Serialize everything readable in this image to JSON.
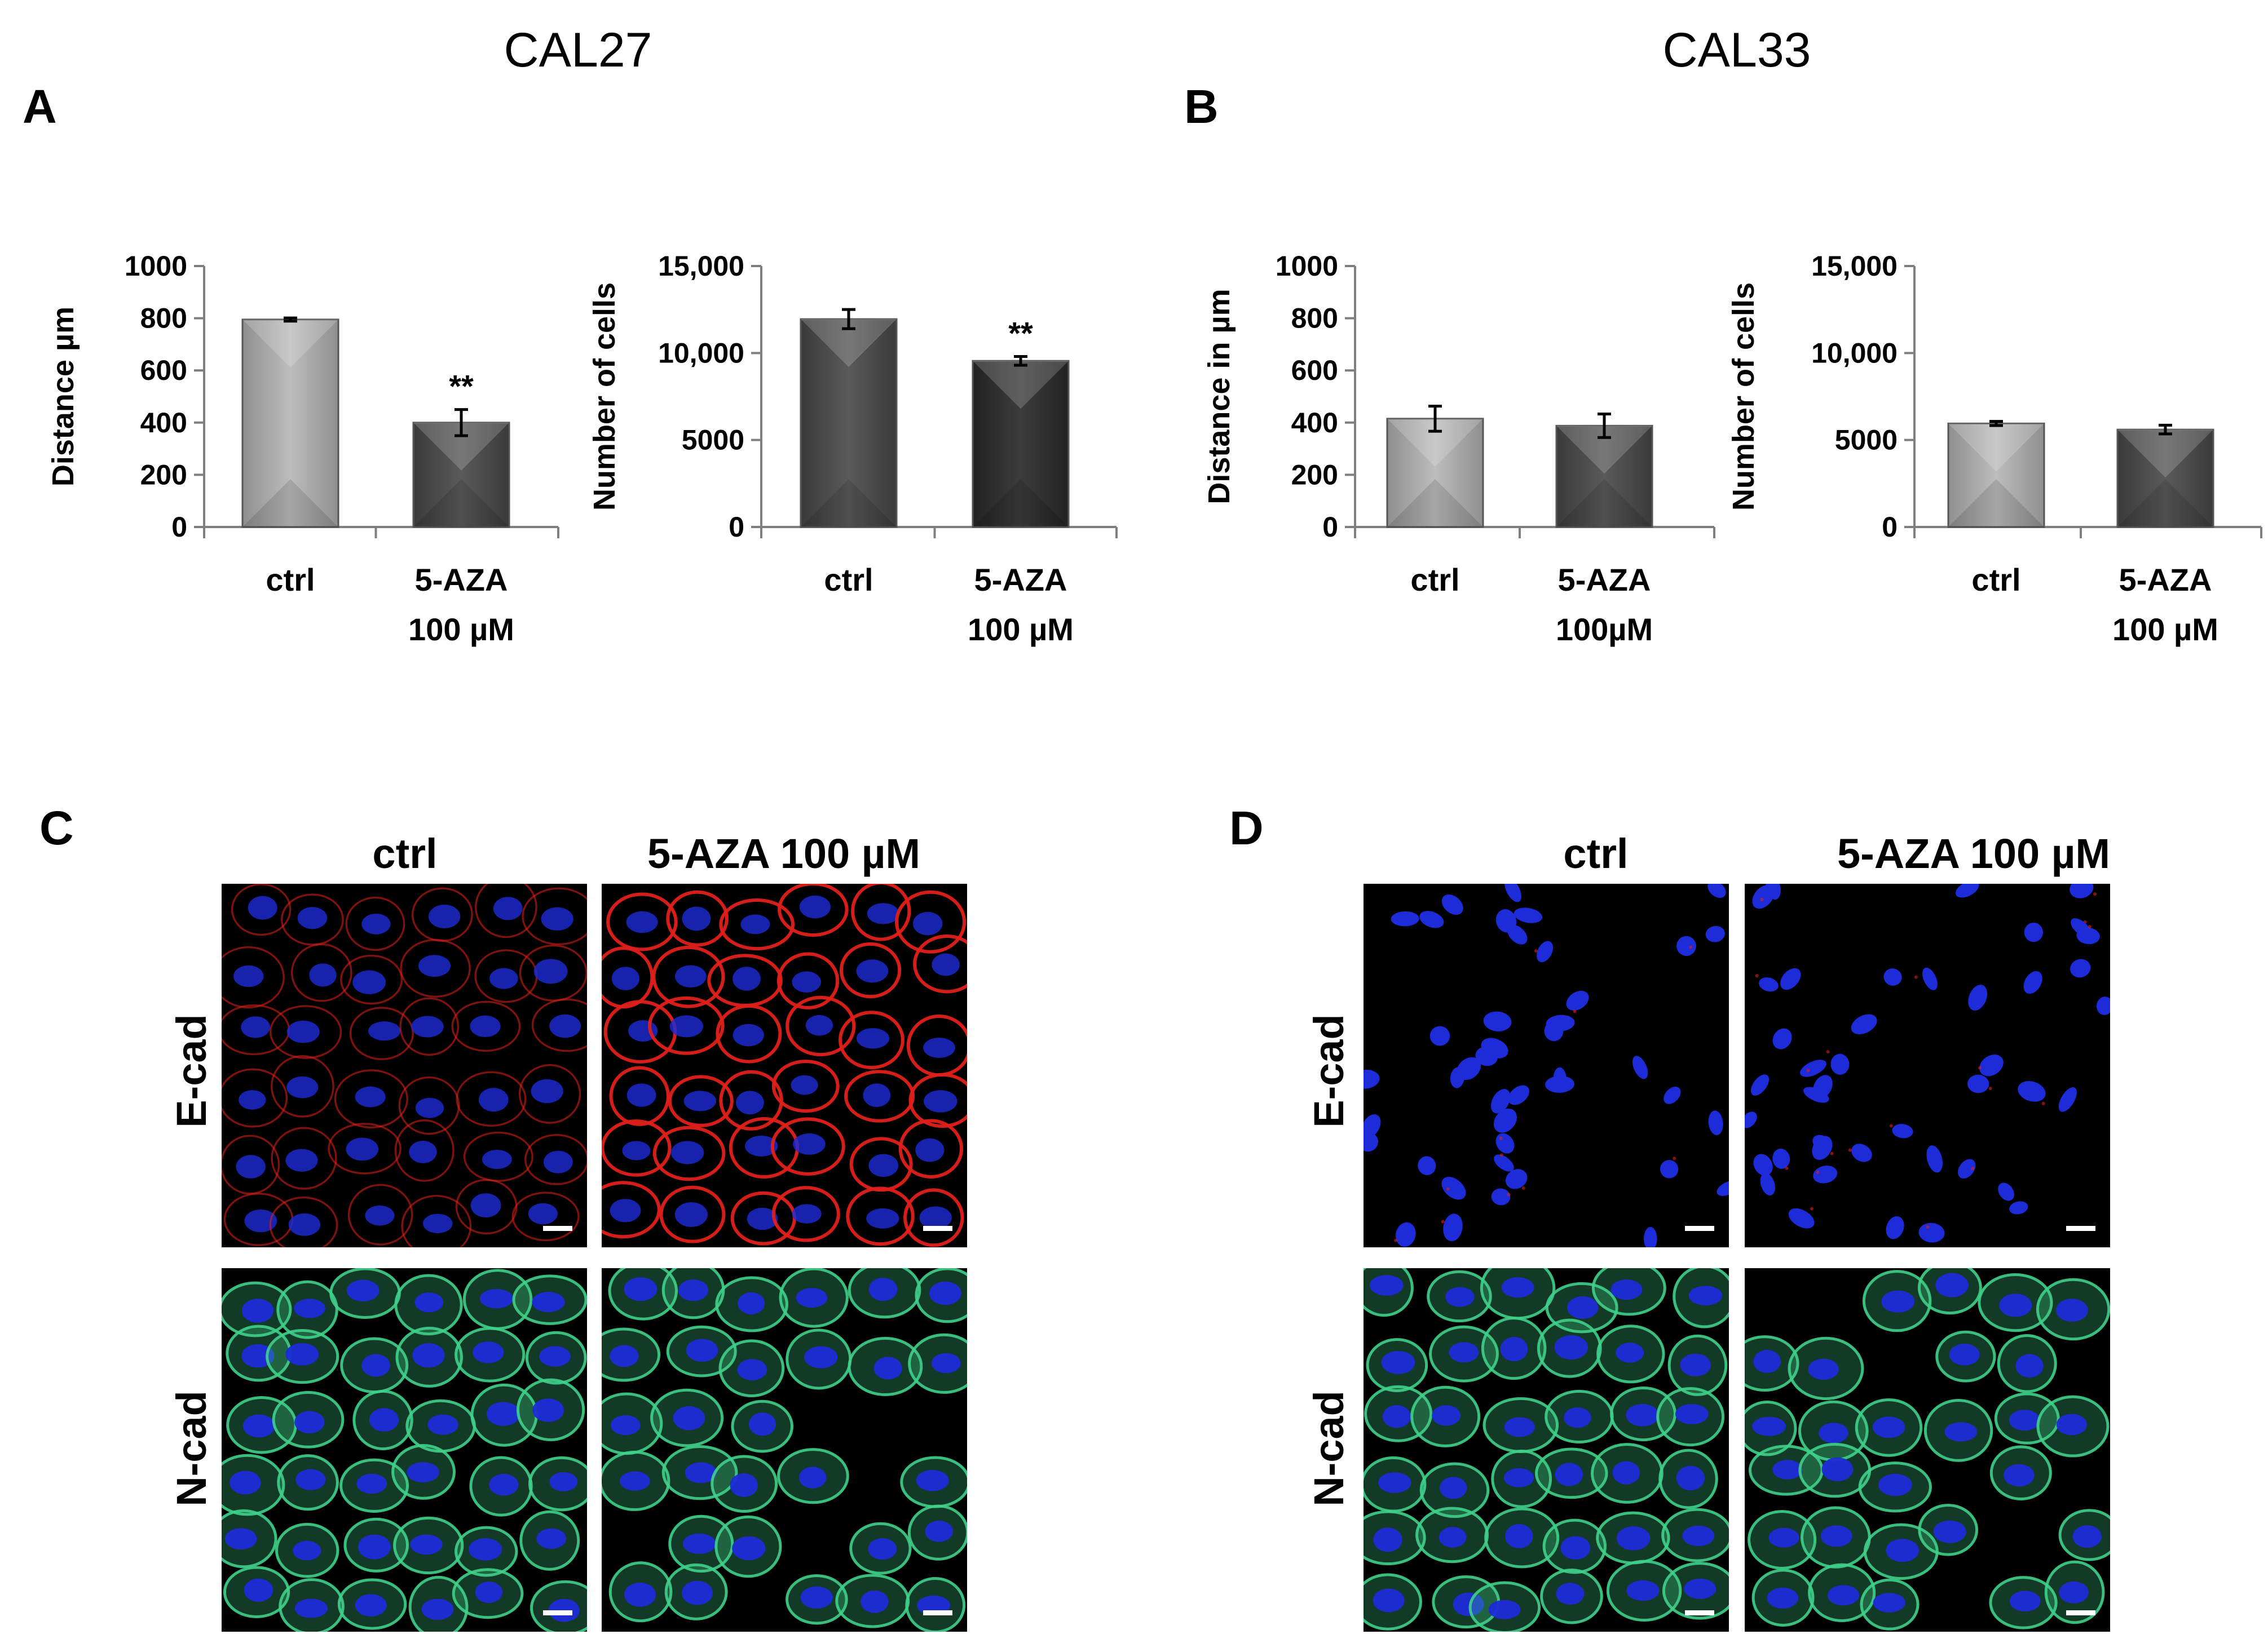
{
  "figure": {
    "cell_lines": [
      "CAL27",
      "CAL33"
    ],
    "panel_letters": [
      "A",
      "B",
      "C",
      "D"
    ],
    "significance": "**",
    "micrograph_columns": [
      "ctrl",
      "5-AZA 100 µM"
    ],
    "micrograph_rows": [
      "E-cad",
      "N-cad"
    ]
  },
  "colors": {
    "ctrl_bar": "#a6a6a6",
    "treat_bar_light": "#505050",
    "treat_bar_dark": "#2e2e2e",
    "ecad_stain": "#e0201a",
    "ncad_stain": "#3fd08a",
    "nuclei_stain": "#1d2bd8"
  },
  "chart_data": [
    {
      "panel": "A",
      "type": "bar",
      "categories": [
        "ctrl",
        "5-AZA\n100 µM"
      ],
      "values": [
        795,
        400
      ],
      "errors": [
        6,
        50
      ],
      "significance": [
        "",
        "**"
      ],
      "ylabel": "Distance µm",
      "yticks": [
        "0",
        "200",
        "400",
        "600",
        "800",
        "1000"
      ],
      "ylim": [
        0,
        1000
      ]
    },
    {
      "panel": "A",
      "type": "bar",
      "categories": [
        "ctrl",
        "5-AZA\n100 µM"
      ],
      "values": [
        11950,
        9550
      ],
      "errors": [
        550,
        250
      ],
      "significance": [
        "",
        "**"
      ],
      "ylabel": "Number of cells",
      "yticks": [
        "0",
        "5000",
        "10,000",
        "15,000"
      ],
      "ylim": [
        0,
        15000
      ]
    },
    {
      "panel": "B",
      "type": "bar",
      "categories": [
        "ctrl",
        "5-AZA\n100µM"
      ],
      "values": [
        415,
        388
      ],
      "errors": [
        48,
        45
      ],
      "significance": [
        "",
        ""
      ],
      "ylabel": "Distance in µm",
      "yticks": [
        "0",
        "200",
        "400",
        "600",
        "800",
        "1000"
      ],
      "ylim": [
        0,
        1000
      ]
    },
    {
      "panel": "B",
      "type": "bar",
      "categories": [
        "ctrl",
        "5-AZA\n100 µM"
      ],
      "values": [
        5950,
        5600
      ],
      "errors": [
        120,
        250
      ],
      "significance": [
        "",
        ""
      ],
      "ylabel": "Number of cells",
      "yticks": [
        "0",
        "5000",
        "10,000",
        "15,000"
      ],
      "ylim": [
        0,
        15000
      ]
    }
  ]
}
